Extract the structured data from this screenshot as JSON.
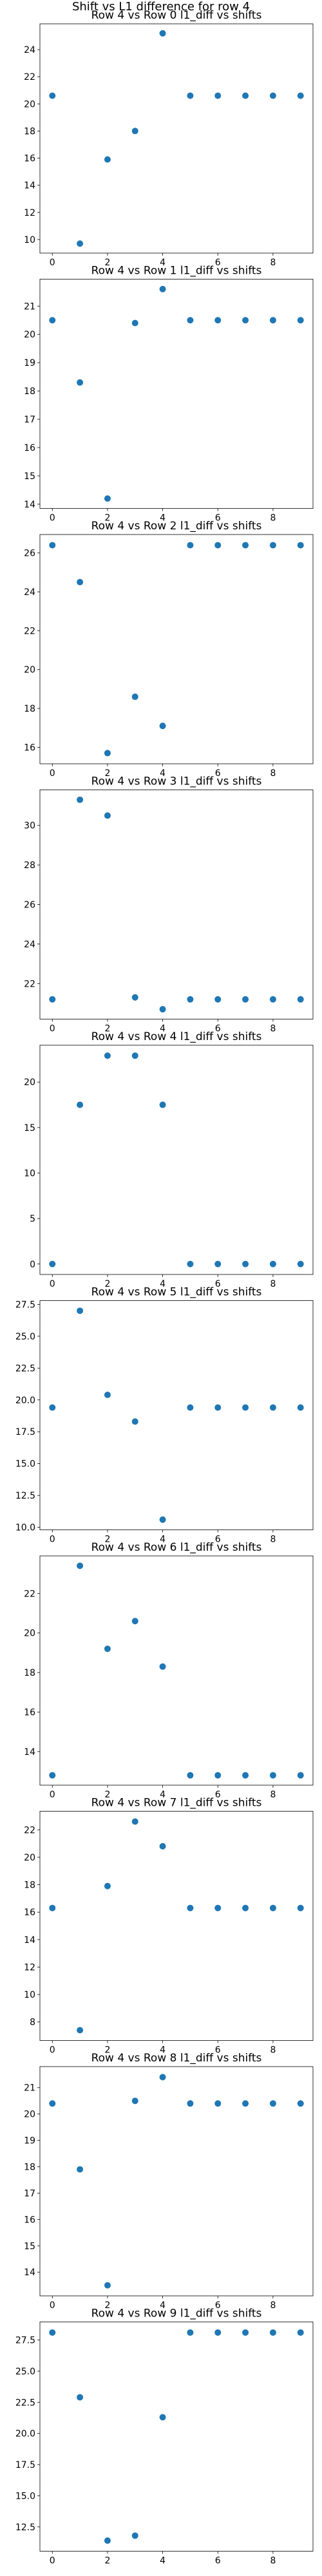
{
  "suptitle": "Shift vs L1 difference for row 4",
  "colors": {
    "marker": "#1f77b4",
    "axis": "#000000",
    "background": "#ffffff"
  },
  "chart_data": [
    {
      "type": "scatter",
      "title": "Row 4 vs Row 0 l1_diff vs shifts",
      "x": [
        0,
        1,
        2,
        3,
        4,
        5,
        6,
        7,
        8,
        9
      ],
      "y": [
        20.6,
        9.7,
        15.9,
        18.0,
        25.2,
        20.6,
        20.6,
        20.6,
        20.6,
        20.6
      ],
      "xlim": [
        -0.45,
        9.45
      ],
      "ylim": [
        9.0,
        25.9
      ],
      "xticks": [
        0,
        2,
        4,
        6,
        8
      ],
      "yticks": [
        10,
        12,
        14,
        16,
        18,
        20,
        22,
        24
      ],
      "grid": false
    },
    {
      "type": "scatter",
      "title": "Row 4 vs Row 1 l1_diff vs shifts",
      "x": [
        0,
        1,
        2,
        3,
        4,
        5,
        6,
        7,
        8,
        9
      ],
      "y": [
        20.5,
        18.3,
        14.2,
        20.4,
        21.6,
        20.5,
        20.5,
        20.5,
        20.5,
        20.5
      ],
      "xlim": [
        -0.45,
        9.45
      ],
      "ylim": [
        13.85,
        21.95
      ],
      "xticks": [
        0,
        2,
        4,
        6,
        8
      ],
      "yticks": [
        14,
        15,
        16,
        17,
        18,
        19,
        20,
        21
      ],
      "grid": false
    },
    {
      "type": "scatter",
      "title": "Row 4 vs Row 2 l1_diff vs shifts",
      "x": [
        0,
        1,
        2,
        3,
        4,
        5,
        6,
        7,
        8,
        9
      ],
      "y": [
        26.4,
        24.5,
        15.7,
        18.6,
        17.1,
        26.4,
        26.4,
        26.4,
        26.4,
        26.4
      ],
      "xlim": [
        -0.45,
        9.45
      ],
      "ylim": [
        15.15,
        26.95
      ],
      "xticks": [
        0,
        2,
        4,
        6,
        8
      ],
      "yticks": [
        16,
        18,
        20,
        22,
        24,
        26
      ],
      "grid": false
    },
    {
      "type": "scatter",
      "title": "Row 4 vs Row 3 l1_diff vs shifts",
      "x": [
        0,
        1,
        2,
        3,
        4,
        5,
        6,
        7,
        8,
        9
      ],
      "y": [
        21.2,
        31.3,
        30.5,
        21.3,
        20.7,
        21.2,
        21.2,
        21.2,
        21.2,
        21.2
      ],
      "xlim": [
        -0.45,
        9.45
      ],
      "ylim": [
        20.2,
        31.8
      ],
      "xticks": [
        0,
        2,
        4,
        6,
        8
      ],
      "yticks": [
        22,
        24,
        26,
        28,
        30
      ],
      "grid": false
    },
    {
      "type": "scatter",
      "title": "Row 4 vs Row 4 l1_diff vs shifts",
      "x": [
        0,
        1,
        2,
        3,
        4,
        5,
        6,
        7,
        8,
        9
      ],
      "y": [
        0.0,
        17.5,
        22.9,
        22.9,
        17.5,
        0.0,
        0.0,
        0.0,
        0.0,
        0.0
      ],
      "xlim": [
        -0.45,
        9.45
      ],
      "ylim": [
        -1.15,
        24.05
      ],
      "xticks": [
        0,
        2,
        4,
        6,
        8
      ],
      "yticks": [
        0,
        5,
        10,
        15,
        20
      ],
      "grid": false
    },
    {
      "type": "scatter",
      "title": "Row 4 vs Row 5 l1_diff vs shifts",
      "x": [
        0,
        1,
        2,
        3,
        4,
        5,
        6,
        7,
        8,
        9
      ],
      "y": [
        19.4,
        27.0,
        20.4,
        18.3,
        10.6,
        19.4,
        19.4,
        19.4,
        19.4,
        19.4
      ],
      "xlim": [
        -0.45,
        9.45
      ],
      "ylim": [
        9.8,
        27.8
      ],
      "xticks": [
        0,
        2,
        4,
        6,
        8
      ],
      "yticks": [
        10.0,
        12.5,
        15.0,
        17.5,
        20.0,
        22.5,
        25.0,
        27.5
      ],
      "tick_decimals": 1,
      "grid": false
    },
    {
      "type": "scatter",
      "title": "Row 4 vs Row 6 l1_diff vs shifts",
      "x": [
        0,
        1,
        2,
        3,
        4,
        5,
        6,
        7,
        8,
        9
      ],
      "y": [
        12.8,
        23.4,
        19.2,
        20.6,
        18.3,
        12.8,
        12.8,
        12.8,
        12.8,
        12.8
      ],
      "xlim": [
        -0.45,
        9.45
      ],
      "ylim": [
        12.3,
        23.9
      ],
      "xticks": [
        0,
        2,
        4,
        6,
        8
      ],
      "yticks": [
        14,
        16,
        18,
        20,
        22
      ],
      "grid": false
    },
    {
      "type": "scatter",
      "title": "Row 4 vs Row 7 l1_diff vs shifts",
      "x": [
        0,
        1,
        2,
        3,
        4,
        5,
        6,
        7,
        8,
        9
      ],
      "y": [
        16.3,
        7.4,
        17.9,
        22.6,
        20.8,
        16.3,
        16.3,
        16.3,
        16.3,
        16.3
      ],
      "xlim": [
        -0.45,
        9.45
      ],
      "ylim": [
        6.65,
        23.35
      ],
      "xticks": [
        0,
        2,
        4,
        6,
        8
      ],
      "yticks": [
        8,
        10,
        12,
        14,
        16,
        18,
        20,
        22
      ],
      "grid": false
    },
    {
      "type": "scatter",
      "title": "Row 4 vs Row 8 l1_diff vs shifts",
      "x": [
        0,
        1,
        2,
        3,
        4,
        5,
        6,
        7,
        8,
        9
      ],
      "y": [
        20.4,
        17.9,
        13.5,
        20.5,
        21.4,
        20.4,
        20.4,
        20.4,
        20.4,
        20.4
      ],
      "xlim": [
        -0.45,
        9.45
      ],
      "ylim": [
        13.1,
        21.8
      ],
      "xticks": [
        0,
        2,
        4,
        6,
        8
      ],
      "yticks": [
        14,
        15,
        16,
        17,
        18,
        19,
        20,
        21
      ],
      "grid": false
    },
    {
      "type": "scatter",
      "title": "Row 4 vs Row 9 l1_diff vs shifts",
      "x": [
        0,
        1,
        2,
        3,
        4,
        5,
        6,
        7,
        8,
        9
      ],
      "y": [
        28.1,
        22.9,
        11.4,
        11.8,
        21.3,
        28.1,
        28.1,
        28.1,
        28.1,
        28.1
      ],
      "xlim": [
        -0.45,
        9.45
      ],
      "ylim": [
        10.55,
        28.95
      ],
      "xticks": [
        0,
        2,
        4,
        6,
        8
      ],
      "yticks": [
        12.5,
        15.0,
        17.5,
        20.0,
        22.5,
        25.0,
        27.5
      ],
      "tick_decimals": 1,
      "grid": false
    }
  ]
}
